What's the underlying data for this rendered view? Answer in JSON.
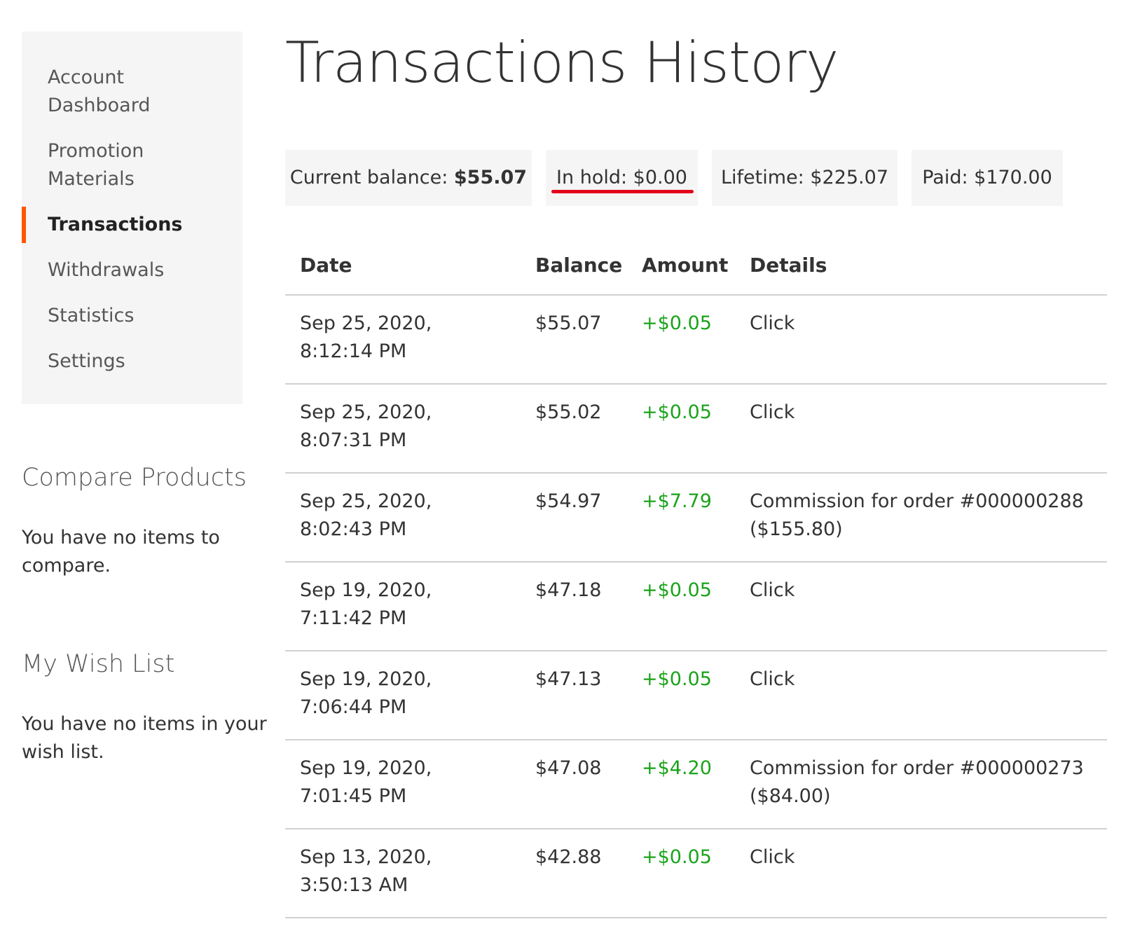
{
  "sidebar": {
    "items": [
      {
        "label": "Account Dashboard"
      },
      {
        "label": "Promotion Materials"
      },
      {
        "label": "Transactions"
      },
      {
        "label": "Withdrawals"
      },
      {
        "label": "Statistics"
      },
      {
        "label": "Settings"
      }
    ],
    "active_index": 2,
    "active_color": "#ff5501"
  },
  "compare": {
    "title": "Compare Products",
    "text": "You have no items to compare."
  },
  "wishlist": {
    "title": "My Wish List",
    "text": "You have no items in your wish list."
  },
  "page_title": "Transactions History",
  "summary": {
    "current_balance_label": "Current balance:",
    "current_balance_value": "$55.07",
    "in_hold": "In hold: $0.00",
    "lifetime": "Lifetime: $225.07",
    "paid": "Paid: $170.00",
    "highlight_color": "#e3001b"
  },
  "table": {
    "headers": {
      "date": "Date",
      "balance": "Balance",
      "amount": "Amount",
      "details": "Details"
    },
    "amount_color": "#1aa31a",
    "rows": [
      {
        "date": "Sep 25, 2020, 8:12:14 PM",
        "balance": "$55.07",
        "amount": "+$0.05",
        "details": "Click"
      },
      {
        "date": "Sep 25, 2020, 8:07:31 PM",
        "balance": "$55.02",
        "amount": "+$0.05",
        "details": "Click"
      },
      {
        "date": "Sep 25, 2020, 8:02:43 PM",
        "balance": "$54.97",
        "amount": "+$7.79",
        "details": "Commission for order #000000288 ($155.80)"
      },
      {
        "date": "Sep 19, 2020, 7:11:42 PM",
        "balance": "$47.18",
        "amount": "+$0.05",
        "details": "Click"
      },
      {
        "date": "Sep 19, 2020, 7:06:44 PM",
        "balance": "$47.13",
        "amount": "+$0.05",
        "details": "Click"
      },
      {
        "date": "Sep 19, 2020, 7:01:45 PM",
        "balance": "$47.08",
        "amount": "+$4.20",
        "details": "Commission for order #000000273 ($84.00)"
      },
      {
        "date": "Sep 13, 2020, 3:50:13 AM",
        "balance": "$42.88",
        "amount": "+$0.05",
        "details": "Click"
      }
    ]
  }
}
